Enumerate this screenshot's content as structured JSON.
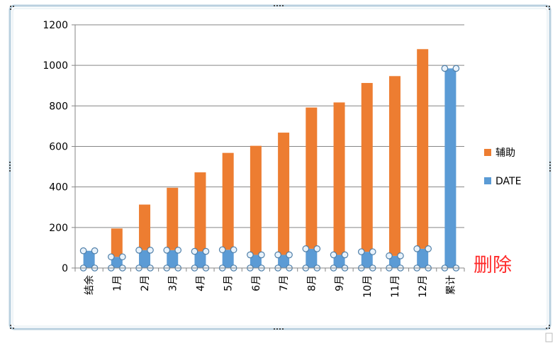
{
  "chart_data": {
    "type": "bar",
    "stacked": true,
    "categories": [
      "结余",
      "1月",
      "2月",
      "3月",
      "4月",
      "5月",
      "6月",
      "7月",
      "8月",
      "9月",
      "10月",
      "11月",
      "12月",
      "累计"
    ],
    "series": [
      {
        "name": "辅助",
        "color": "#ED7D31",
        "values": [
          0,
          140,
          225,
          308,
          390,
          478,
          538,
          603,
          697,
          752,
          833,
          887,
          985,
          0
        ]
      },
      {
        "name": "DATE",
        "color": "#5B9BD5",
        "values": [
          85,
          55,
          88,
          88,
          82,
          90,
          65,
          65,
          95,
          65,
          80,
          60,
          95,
          985
        ]
      }
    ],
    "ylim": [
      0,
      1200
    ],
    "yticks": [
      0,
      200,
      400,
      600,
      800,
      1000,
      1200
    ],
    "grid": true,
    "legend": "right",
    "selected_series": "DATE"
  },
  "annotation": "删除",
  "icons": {
    "resize_handle": "dots-handle-icon"
  }
}
